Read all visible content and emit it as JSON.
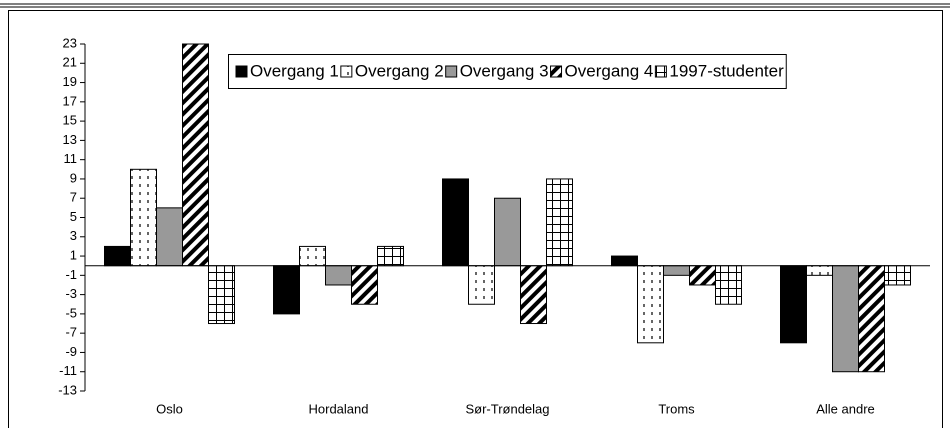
{
  "chart_data": {
    "type": "bar",
    "categories": [
      "Oslo",
      "Hordaland",
      "Sør-Trøndelag",
      "Troms",
      "Alle andre"
    ],
    "series": [
      {
        "name": "Overgang 1",
        "color": "#000000",
        "pattern": "solid",
        "values": [
          2,
          -5,
          9,
          1,
          -8
        ]
      },
      {
        "name": "Overgang 2",
        "color": "#ffffff",
        "pattern": "dots",
        "values": [
          10,
          2,
          -4,
          -8,
          -1
        ]
      },
      {
        "name": "Overgang 3",
        "color": "#999999",
        "pattern": "solid",
        "values": [
          6,
          -2,
          7,
          -1,
          -11
        ]
      },
      {
        "name": "Overgang 4",
        "color": "#ffffff",
        "pattern": "diagonal",
        "values": [
          23,
          -4,
          -6,
          -2,
          -11
        ]
      },
      {
        "name": "1997-studenter",
        "color": "#ffffff",
        "pattern": "grid",
        "values": [
          -6,
          2,
          9,
          -4,
          -2
        ]
      }
    ],
    "ylim": [
      -13,
      23
    ],
    "yticks": [
      -13,
      -11,
      -9,
      -7,
      -5,
      -3,
      -1,
      1,
      3,
      5,
      7,
      9,
      11,
      13,
      15,
      17,
      19,
      21,
      23
    ],
    "grid": false,
    "legend": "top"
  }
}
